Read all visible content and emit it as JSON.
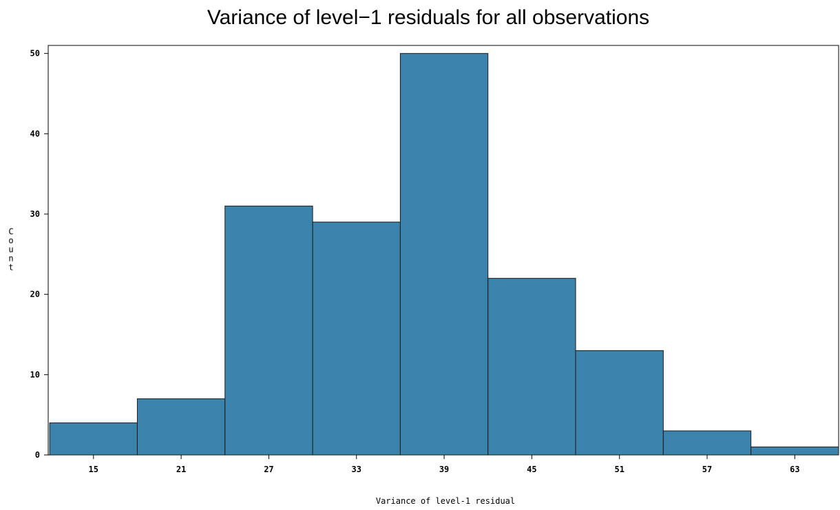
{
  "chart_data": {
    "type": "bar",
    "title": "Variance of level−1 residuals for all observations",
    "xlabel": "Variance of level-1 residual",
    "ylabel": "Count",
    "bin_width": 6,
    "categories": [
      "15",
      "21",
      "27",
      "33",
      "39",
      "45",
      "51",
      "57",
      "63"
    ],
    "x": [
      15,
      21,
      27,
      33,
      39,
      45,
      51,
      57,
      63
    ],
    "values": [
      4,
      7,
      31,
      29,
      50,
      22,
      13,
      3,
      1
    ],
    "xlim": [
      11.9,
      66
    ],
    "ylim": [
      0,
      51
    ],
    "yticks": [
      0,
      10,
      20,
      30,
      40,
      50
    ],
    "grid": false,
    "colors": {
      "bar": "#3b83aa",
      "edge": "#1a1a1a"
    }
  }
}
